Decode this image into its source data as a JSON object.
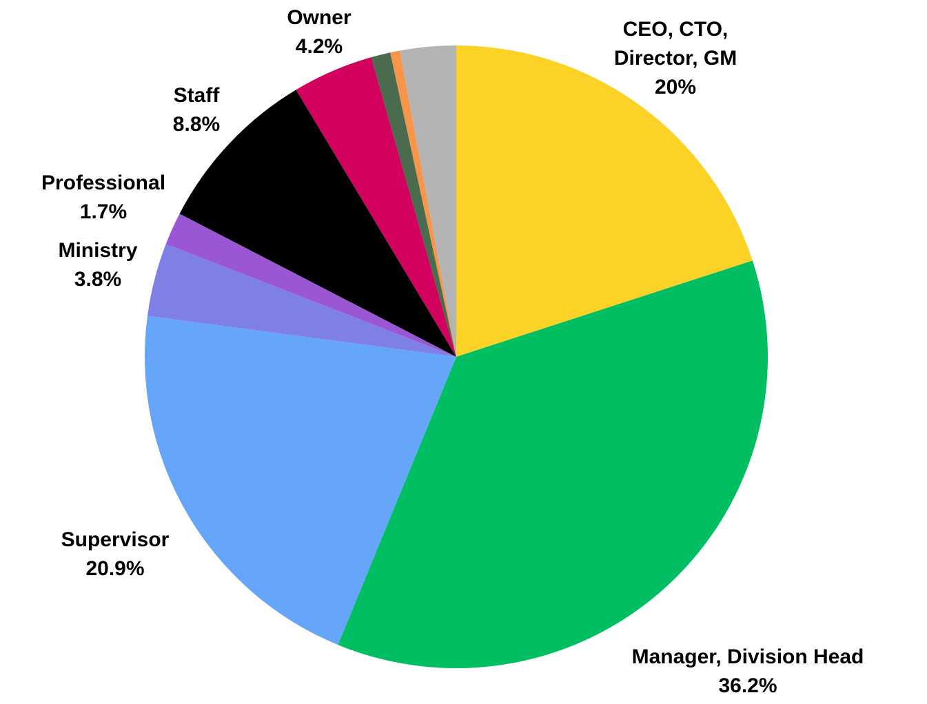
{
  "chart_data": {
    "type": "pie",
    "categories": [
      "CEO, CTO, Director, GM",
      "Manager, Division Head",
      "Supervisor",
      "Ministry",
      "Professional",
      "Staff",
      "Owner",
      null,
      null,
      null
    ],
    "values": [
      20,
      36.2,
      20.9,
      3.8,
      1.7,
      8.8,
      4.2,
      1.0,
      0.5,
      2.9
    ],
    "value_labels": [
      "20%",
      "36.2%",
      "20.9%",
      "3.8%",
      "1.7%",
      "8.8%",
      "4.2%",
      null,
      null,
      null
    ],
    "colors": [
      "#fdd226",
      "#00bf63",
      "#66a6fa",
      "#7e80e6",
      "#9b57d3",
      "#000000",
      "#d1015d",
      "#4a6b4e",
      "#f7964a",
      "#b4b4b4"
    ]
  }
}
